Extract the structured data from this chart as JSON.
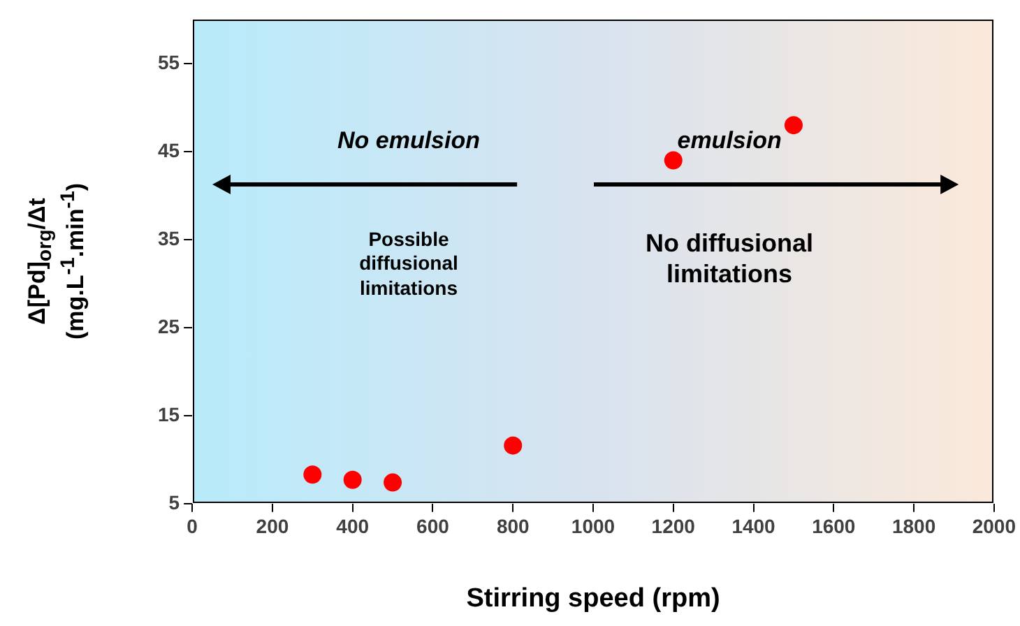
{
  "chart_data": {
    "type": "scatter",
    "xlabel": "Stirring speed (rpm)",
    "ylabel": "Δ[Pd]$_{org}$/Δt (mg.L$^{-1}$.min$^{-1}$)",
    "x": [
      300,
      400,
      500,
      800,
      1200,
      1500
    ],
    "series": [
      {
        "color": "#ff0000",
        "values": [
          8.3,
          7.7,
          7.4,
          11.6,
          44,
          48
        ]
      }
    ],
    "xlim": [
      0,
      2000
    ],
    "xticks": [
      0,
      200,
      400,
      600,
      800,
      1000,
      1200,
      1400,
      1600,
      1800,
      2000
    ],
    "ylim": [
      5,
      60
    ],
    "yticks": [
      5,
      15,
      25,
      35,
      45,
      55
    ],
    "grid": false,
    "legend": false,
    "marker": "circle",
    "annotations": [
      "No emulsion",
      "emulsion",
      "Possible diffusional limitations",
      "No diffusional limitations"
    ]
  }
}
